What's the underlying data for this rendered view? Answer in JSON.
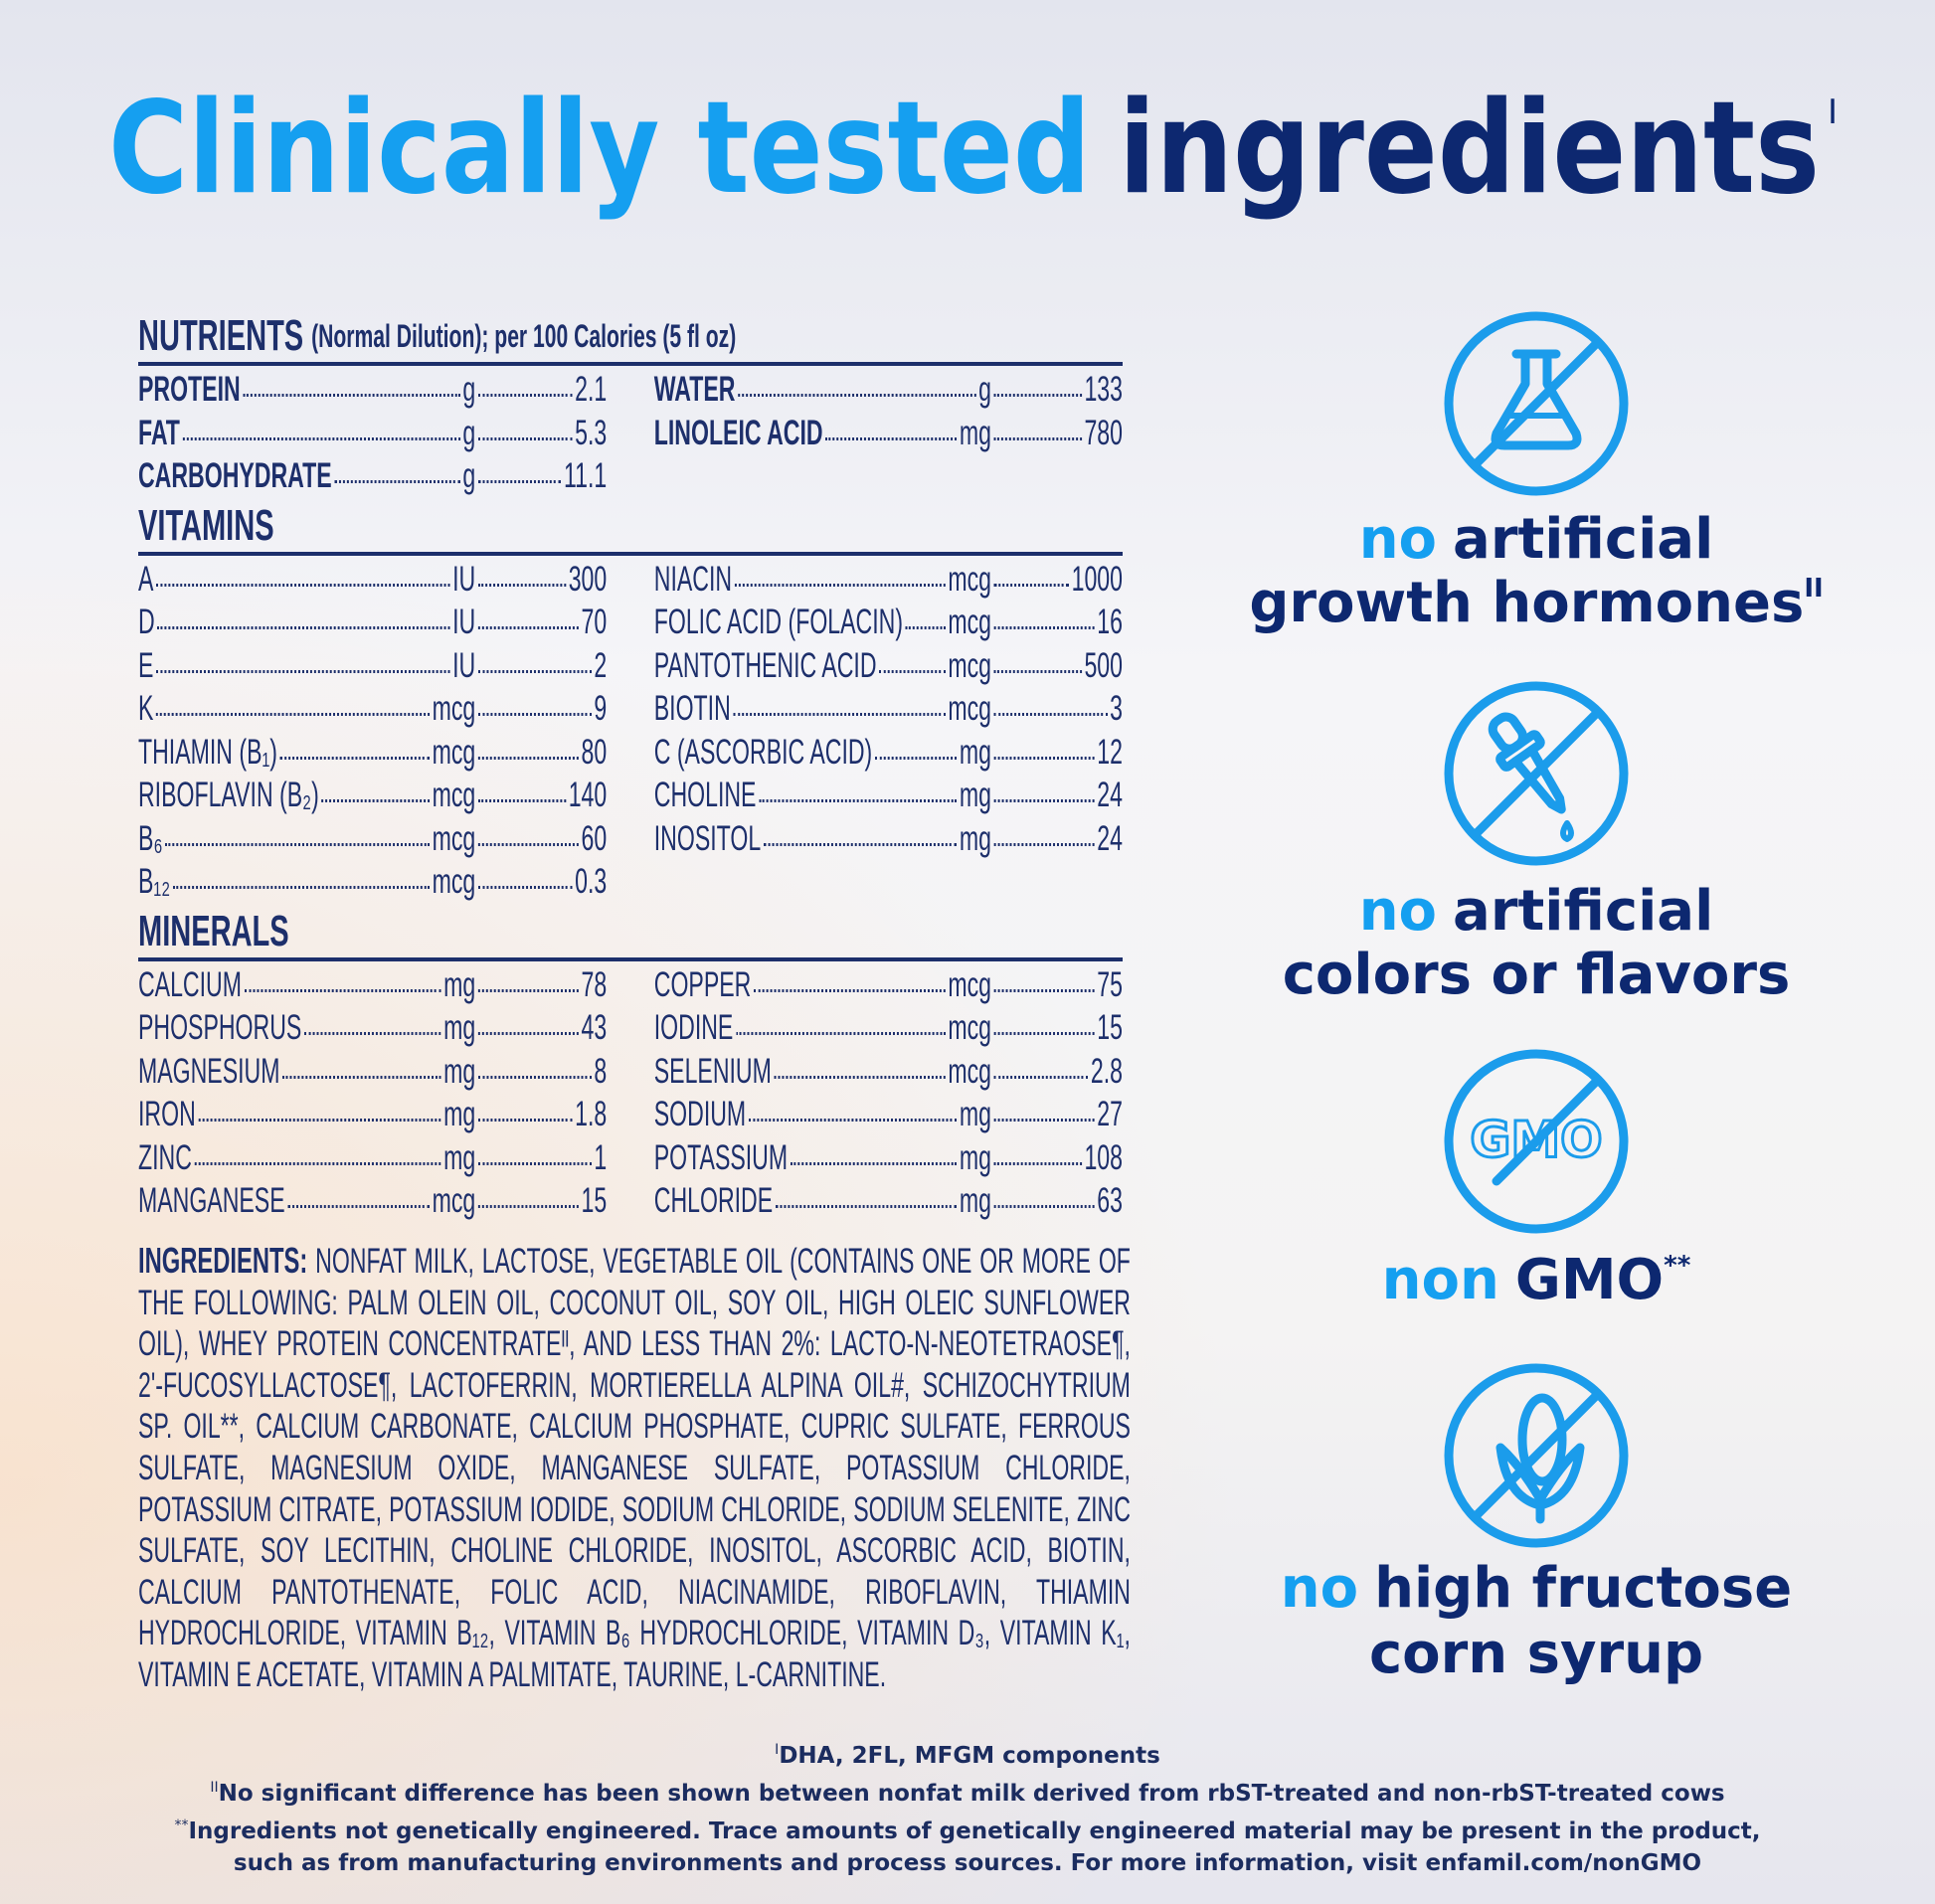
{
  "header": {
    "title_highlight": "Clinically tested",
    "title_main": "ingredients",
    "title_mark": "I"
  },
  "nutrients": {
    "heading": "NUTRIENTS",
    "heading_note": "(Normal Dilution); per 100 Calories (5 fl oz)",
    "sections": [
      {
        "rows_left": [
          [
            "PROTEIN",
            "g",
            "2.1"
          ],
          [
            "FAT",
            "g",
            "5.3"
          ],
          [
            "CARBOHYDRATE",
            "g",
            "11.1"
          ]
        ],
        "rows_right": [
          [
            "WATER",
            "g",
            "133"
          ],
          [
            "LINOLEIC ACID",
            "mg",
            "780"
          ]
        ]
      },
      {
        "heading": "VITAMINS",
        "rows_left": [
          [
            "A",
            "IU",
            "300"
          ],
          [
            "D",
            "IU",
            "70"
          ],
          [
            "E",
            "IU",
            "2"
          ],
          [
            "K",
            "mcg",
            "9"
          ],
          [
            "THIAMIN (B₁)",
            "mcg",
            "80"
          ],
          [
            "RIBOFLAVIN (B₂)",
            "mcg",
            "140"
          ],
          [
            "B₆",
            "mcg",
            "60"
          ],
          [
            "B₁₂",
            "mcg",
            "0.3"
          ]
        ],
        "rows_right": [
          [
            "NIACIN",
            "mcg",
            "1000"
          ],
          [
            "FOLIC ACID (FOLACIN)",
            "mcg",
            "16"
          ],
          [
            "PANTOTHENIC ACID",
            "mcg",
            "500"
          ],
          [
            "BIOTIN",
            "mcg",
            "3"
          ],
          [
            "C (ASCORBIC ACID)",
            "mg",
            "12"
          ],
          [
            "CHOLINE",
            "mg",
            "24"
          ],
          [
            "INOSITOL",
            "mg",
            "24"
          ]
        ]
      },
      {
        "heading": "MINERALS",
        "rows_left": [
          [
            "CALCIUM",
            "mg",
            "78"
          ],
          [
            "PHOSPHORUS",
            "mg",
            "43"
          ],
          [
            "MAGNESIUM",
            "mg",
            "8"
          ],
          [
            "IRON",
            "mg",
            "1.8"
          ],
          [
            "ZINC",
            "mg",
            "1"
          ],
          [
            "MANGANESE",
            "mcg",
            "15"
          ]
        ],
        "rows_right": [
          [
            "COPPER",
            "mcg",
            "75"
          ],
          [
            "IODINE",
            "mcg",
            "15"
          ],
          [
            "SELENIUM",
            "mcg",
            "2.8"
          ],
          [
            "SODIUM",
            "mg",
            "27"
          ],
          [
            "POTASSIUM",
            "mg",
            "108"
          ],
          [
            "CHLORIDE",
            "mg",
            "63"
          ]
        ]
      }
    ]
  },
  "ingredients": {
    "label": "INGREDIENTS:",
    "text": "NONFAT MILK, LACTOSE, VEGETABLE OIL (CONTAINS ONE OR MORE OF THE FOLLOWING: PALM OLEIN OIL, COCONUT OIL, SOY OIL, HIGH OLEIC SUNFLOWER OIL), WHEY PROTEIN CONCENTRATEᴵᴵ, AND LESS THAN 2%: LACTO-N-NEOTETRAOSE¶, 2'-FUCOSYLLACTOSE¶, LACTOFERRIN, MORTIERELLA ALPINA OIL#, SCHIZOCHYTRIUM SP. OIL**, CALCIUM CARBONATE, CALCIUM PHOSPHATE, CUPRIC SULFATE, FERROUS SULFATE, MAGNESIUM OXIDE, MANGANESE SULFATE, POTASSIUM CHLORIDE, POTASSIUM CITRATE, POTASSIUM IODIDE, SODIUM CHLORIDE, SODIUM SELENITE, ZINC SULFATE, SOY LECITHIN, CHOLINE CHLORIDE, INOSITOL, ASCORBIC ACID, BIOTIN, CALCIUM PANTOTHENATE, FOLIC ACID, NIACINAMIDE, RIBOFLAVIN, THIAMIN HYDROCHLORIDE, VITAMIN B₁₂, VITAMIN B₆ HYDROCHLORIDE, VITAMIN D₃, VITAMIN K₁, VITAMIN E ACETATE, VITAMIN A PALMITATE, TAURINE, L-CARNITINE."
  },
  "claims": [
    {
      "highlight": "no",
      "line1": "artificial",
      "line2": "growth hormones",
      "mark": "II"
    },
    {
      "highlight": "no",
      "line1": "artificial",
      "line2": "colors or flavors"
    },
    {
      "highlight": "non",
      "line1": "GMO",
      "mark": "**",
      "icon_text": "GMO"
    },
    {
      "highlight": "no",
      "line1": "high fructose",
      "line2": "corn syrup"
    }
  ],
  "footnotes": [
    {
      "mark": "I",
      "text": "DHA, 2FL, MFGM components"
    },
    {
      "mark": "II",
      "text": "No significant difference has been shown between nonfat milk derived from rbST-treated and non-rbST-treated cows"
    },
    {
      "mark": "**",
      "text": "Ingredients not genetically engineered. Trace amounts of genetically engineered material may be present in the product,"
    },
    {
      "text": "such as from manufacturing environments and process sources. For more information, visit enfamil.com/nonGMO"
    }
  ]
}
